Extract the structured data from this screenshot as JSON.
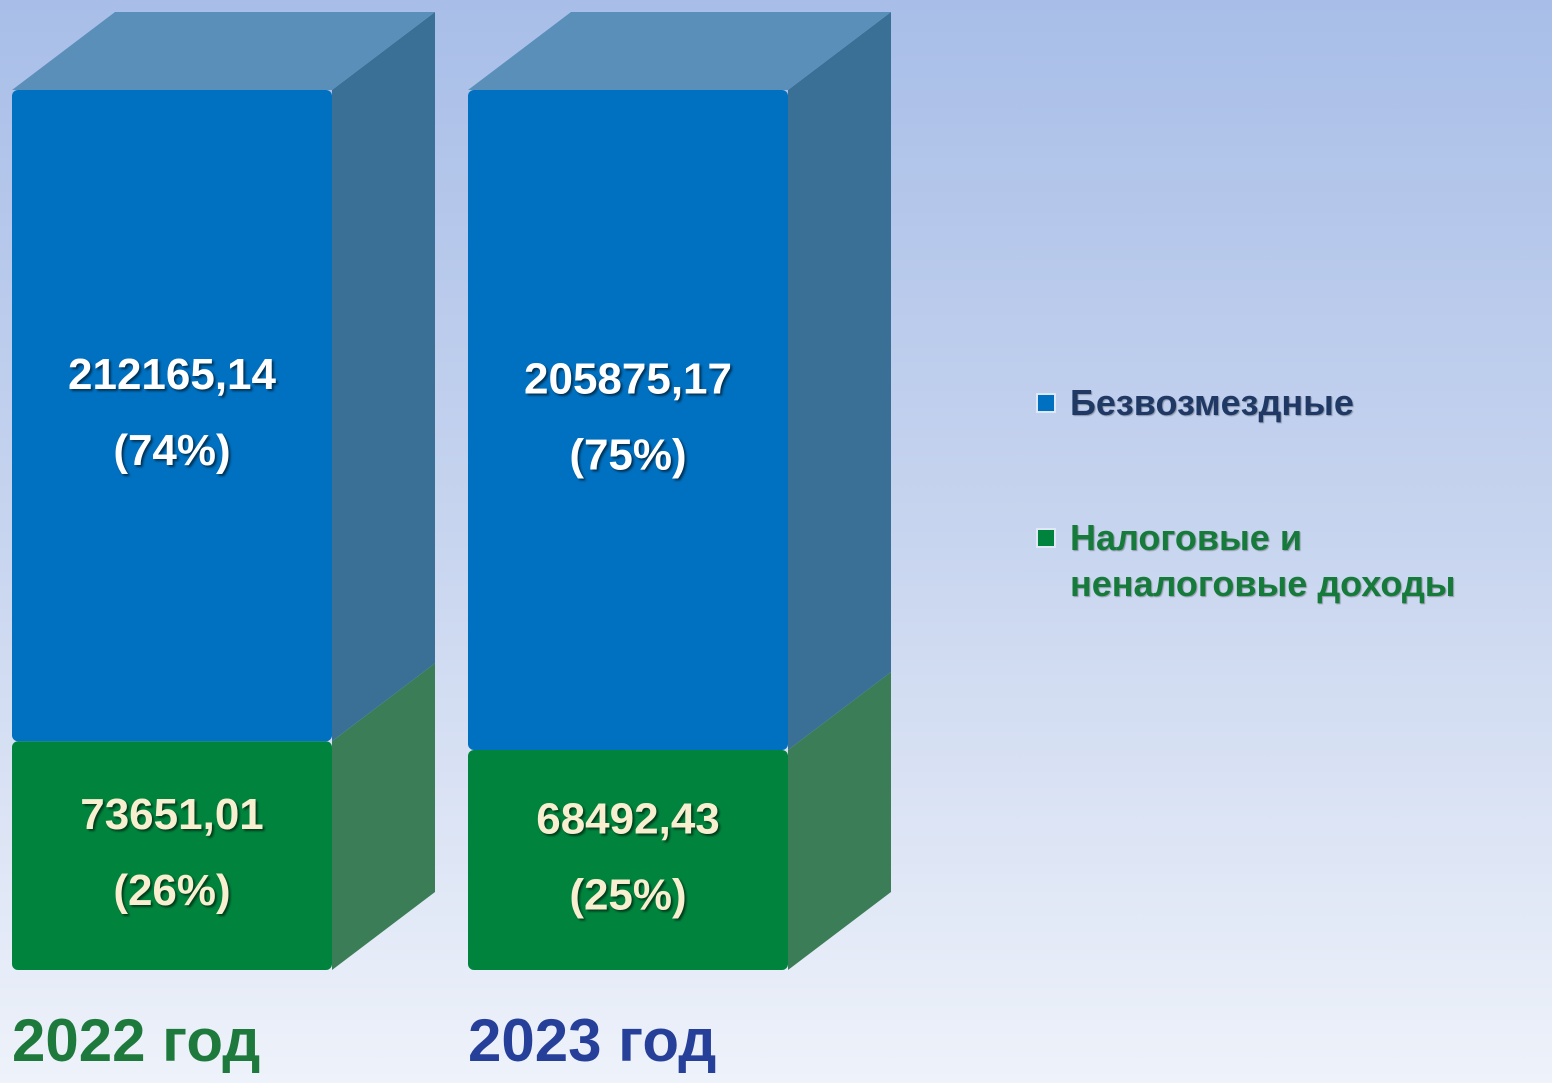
{
  "chart_data": {
    "type": "bar",
    "stacked_percent": true,
    "categories": [
      "2022 год",
      "2023 год"
    ],
    "category_colors": [
      "#1e7a3c",
      "#263f98"
    ],
    "series": [
      {
        "name": "Безвозмездные",
        "color": "#0070c0",
        "side_color": "#3a6f96",
        "top_color": "#5a8fba",
        "label_color": "#ffffff",
        "legend_text_color": "#1f3864",
        "values": [
          212165.14,
          205875.17
        ],
        "value_labels": [
          "212165,14",
          "205875,17"
        ],
        "percents": [
          74,
          75
        ],
        "percent_labels": [
          "(74%)",
          "(75%)"
        ]
      },
      {
        "name": "Налоговые и неналоговые доходы",
        "color": "#00843d",
        "side_color": "#3b7d56",
        "top_color": "#4f9a6a",
        "label_color": "#f7efcf",
        "legend_text_color": "#167a3a",
        "values": [
          73651.01,
          68492.43
        ],
        "value_labels": [
          "73651,01",
          "68492,43"
        ],
        "percents": [
          26,
          25
        ],
        "percent_labels": [
          "(26%)",
          "(25%)"
        ]
      }
    ],
    "legend": "right"
  }
}
